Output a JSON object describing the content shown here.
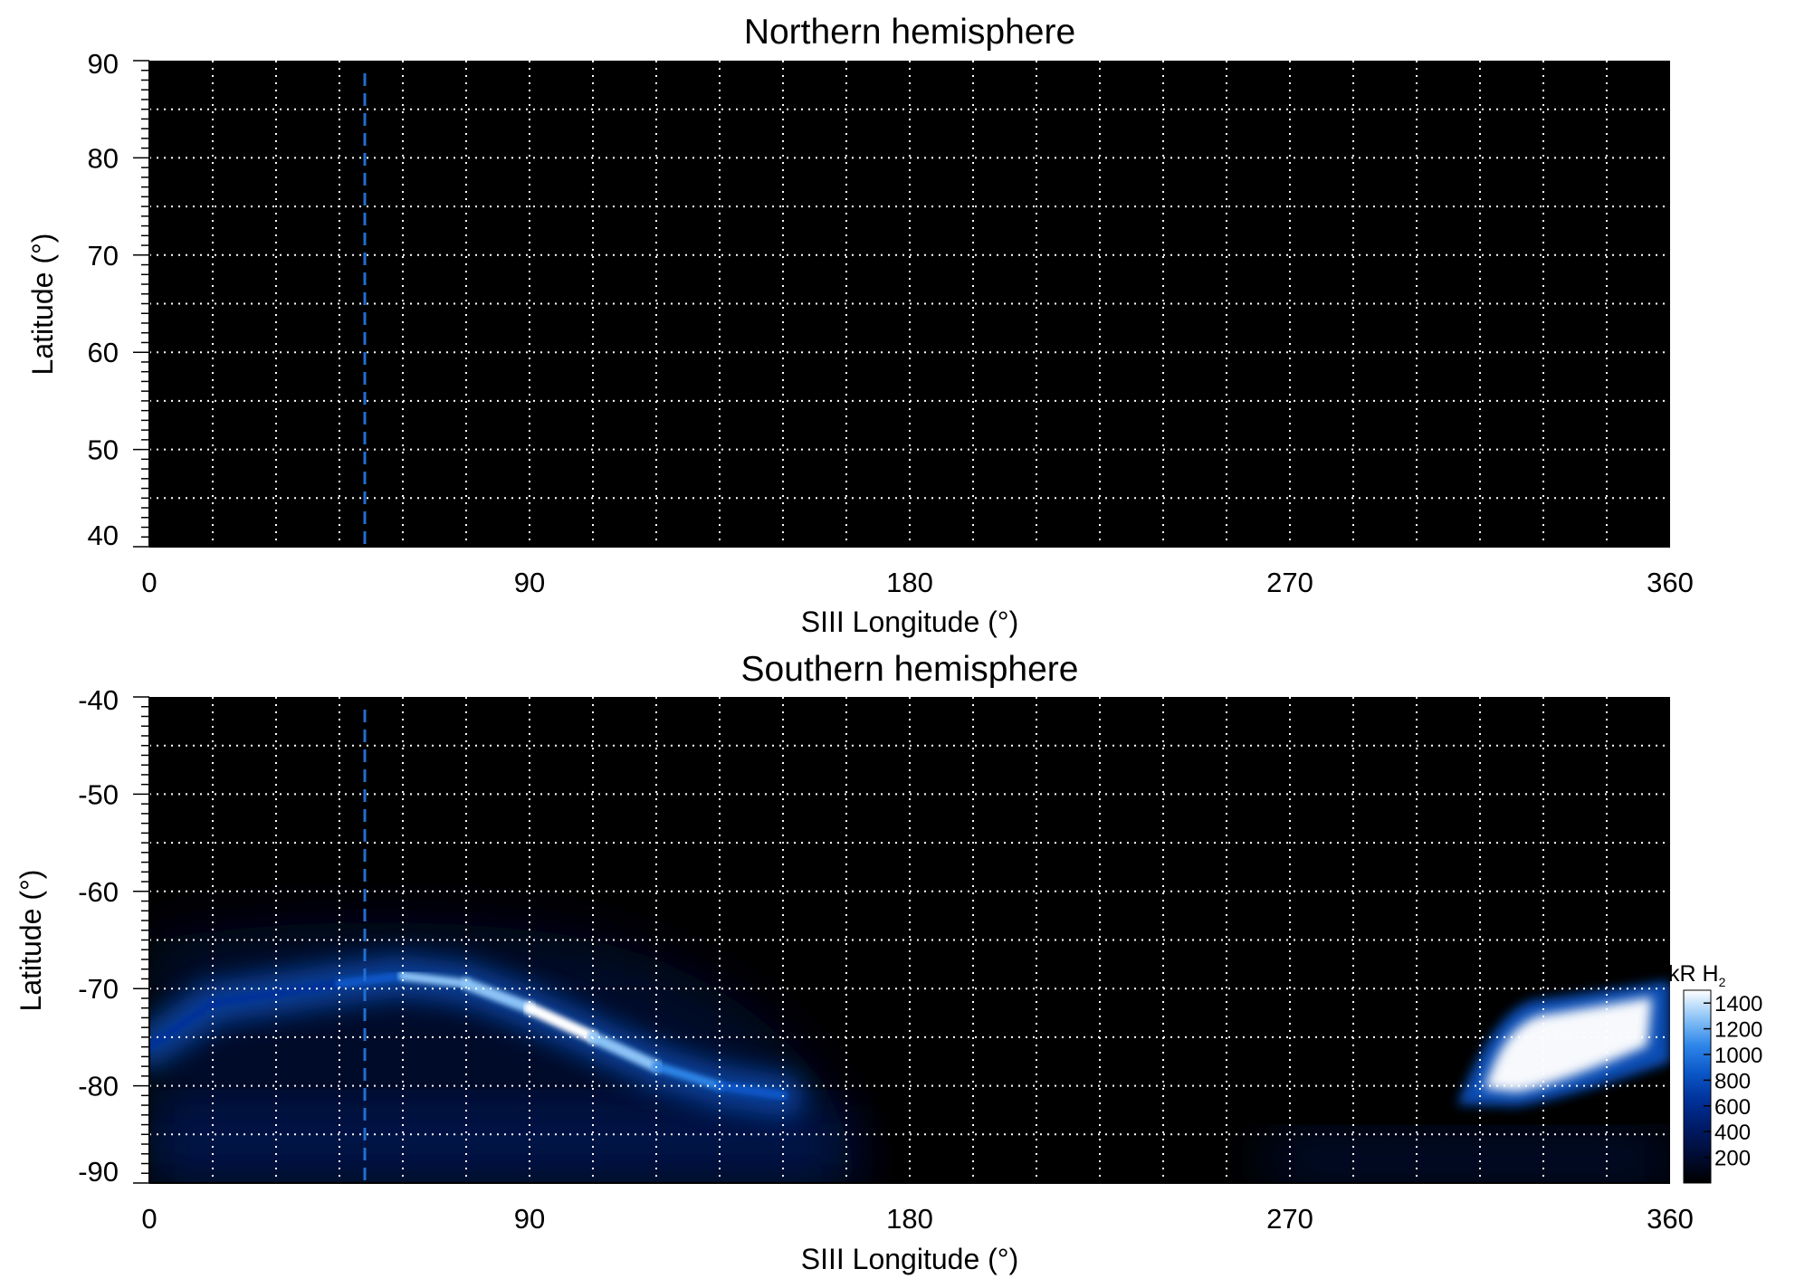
{
  "colors": {
    "background": "#000000",
    "grid": "#ffffff",
    "marker": "#1f6fd1",
    "colormap": [
      "#000000",
      "#000c33",
      "#001a66",
      "#003199",
      "#0b57c8",
      "#2e86e8",
      "#8cc4f7",
      "#ffffff"
    ]
  },
  "chart_data": [
    {
      "type": "heatmap",
      "title": "Northern hemisphere",
      "xlabel": "SIII Longitude (°)",
      "ylabel": "Latitude (°)",
      "xlim": [
        0,
        360
      ],
      "ylim": [
        40,
        90
      ],
      "xticks": [
        "0",
        "90",
        "180",
        "270",
        "360"
      ],
      "yticks": [
        "40",
        "50",
        "60",
        "70",
        "80",
        "90"
      ],
      "grid": true,
      "grid_lon_step": 15,
      "grid_lat_step": 5,
      "marker_longitude": 51,
      "emission": "none"
    },
    {
      "type": "heatmap",
      "title": "Southern hemisphere",
      "xlabel": "SIII Longitude (°)",
      "ylabel": "Latitude (°)",
      "xlim": [
        0,
        360
      ],
      "ylim": [
        -90,
        -40
      ],
      "xticks": [
        "0",
        "90",
        "180",
        "270",
        "360"
      ],
      "yticks": [
        "-40",
        "-50",
        "-60",
        "-70",
        "-80",
        "-90"
      ],
      "grid": true,
      "grid_lon_step": 15,
      "grid_lat_step": 5,
      "marker_longitude": 51,
      "auroral_oval_main": [
        [
          0,
          -76,
          700
        ],
        [
          15,
          -71.5,
          600
        ],
        [
          30,
          -70.5,
          500
        ],
        [
          45,
          -69.5,
          700
        ],
        [
          60,
          -68.7,
          1100
        ],
        [
          75,
          -69.5,
          1300
        ],
        [
          90,
          -72,
          1400
        ],
        [
          105,
          -75,
          1400
        ],
        [
          120,
          -78,
          1300
        ],
        [
          135,
          -80,
          1000
        ],
        [
          150,
          -81,
          700
        ]
      ],
      "auroral_bright_region": {
        "lon": [
          315,
          360
        ],
        "lat": [
          -81,
          -72
        ],
        "value": 1400
      },
      "colorbar": {
        "label_main": "kR H",
        "label_sub": "2",
        "ticks": [
          "200",
          "400",
          "600",
          "800",
          "1000",
          "1200",
          "1400"
        ],
        "range": [
          0,
          1500
        ]
      }
    }
  ]
}
